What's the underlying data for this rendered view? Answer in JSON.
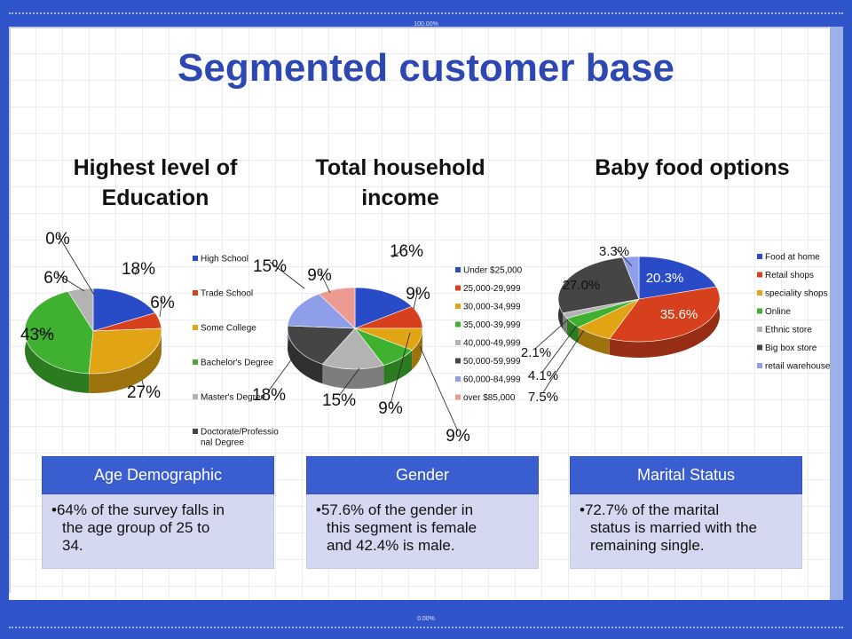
{
  "header_zoom": "100.00%",
  "footer_zoom": "0.00%",
  "title": "Segmented customer base",
  "charts": [
    {
      "title_line1": "Highest level of",
      "title_line2": "Education"
    },
    {
      "title_line1": "Total household",
      "title_line2": "income"
    },
    {
      "title_line1": "Baby food options",
      "title_line2": ""
    }
  ],
  "chart_data": [
    {
      "type": "pie",
      "title": "Highest level of Education",
      "categories": [
        "High School",
        "Trade School",
        "Some College",
        "Bachelor's Degree",
        "Master's Degree",
        "Doctorate/Professional Degree"
      ],
      "legend_lines": [
        [
          "High School"
        ],
        [
          "Trade School"
        ],
        [
          "Some College"
        ],
        [
          "Bachelor's Degree"
        ],
        [
          "Master's Degree"
        ],
        [
          "Doctorate/Professio",
          "nal Degree"
        ]
      ],
      "values": [
        18,
        6,
        27,
        43,
        6,
        0
      ],
      "labels": [
        "18%",
        "6%",
        "27%",
        "43%",
        "6%",
        "0%"
      ],
      "colors": [
        "#2a4bc8",
        "#d6401c",
        "#e0a414",
        "#3fb02f",
        "#b3b3b3",
        "#454545"
      ],
      "legend": "right"
    },
    {
      "type": "pie",
      "title": "Total household income",
      "categories": [
        "Under $25,000",
        "25,000-29,999",
        "30,000-34,999",
        "35,000-39,999",
        "40,000-49,999",
        "50,000-59,999",
        "60,000-84,999",
        "over $85,000"
      ],
      "legend_lines": [
        [
          "Under $25,000"
        ],
        [
          "25,000-29,999"
        ],
        [
          "30,000-34,999"
        ],
        [
          "35,000-39,999"
        ],
        [
          "40,000-49,999"
        ],
        [
          "50,000-59,999"
        ],
        [
          "60,000-84,999"
        ],
        [
          "over $85,000"
        ]
      ],
      "values": [
        16,
        9,
        9,
        9,
        15,
        18,
        15,
        9
      ],
      "labels": [
        "16%",
        "9%",
        "9%",
        "9%",
        "15%",
        "18%",
        "15%",
        "9%"
      ],
      "colors": [
        "#2a4bc8",
        "#d6401c",
        "#e0a414",
        "#3fb02f",
        "#b3b3b3",
        "#454545",
        "#8f9ee8",
        "#ec9a92"
      ],
      "legend": "right"
    },
    {
      "type": "pie",
      "title": "Baby food options",
      "categories": [
        "Food at home",
        "Retail shops",
        "speciality shops",
        "Online",
        "Ethnic store",
        "Big box store",
        "retail warehouse"
      ],
      "legend_lines": [
        [
          "Food at home"
        ],
        [
          "Retail shops"
        ],
        [
          "speciality shops"
        ],
        [
          "Online"
        ],
        [
          "Ethnic store"
        ],
        [
          "Big box store"
        ],
        [
          "retail warehouse"
        ]
      ],
      "values": [
        20.3,
        35.6,
        7.5,
        4.1,
        2.1,
        27.0,
        3.3
      ],
      "labels": [
        "20.3%",
        "35.6%",
        "7.5%",
        "4.1%",
        "2.1%",
        "27.0%",
        "3.3%"
      ],
      "colors": [
        "#2a4bc8",
        "#d6401c",
        "#e0a414",
        "#3fb02f",
        "#b3b3b3",
        "#454545",
        "#8f9ee8"
      ],
      "legend": "right"
    }
  ],
  "boxes": [
    {
      "header": "Age Demographic",
      "lines": [
        "•64% of the survey falls in",
        "the age group of 25 to",
        "34."
      ]
    },
    {
      "header": "Gender",
      "lines": [
        "•57.6% of the gender in",
        "this segment is female",
        "and 42.4% is male."
      ]
    },
    {
      "header": "Marital Status",
      "lines": [
        "•72.7% of the marital",
        "status is married with the",
        "remaining single."
      ]
    }
  ]
}
